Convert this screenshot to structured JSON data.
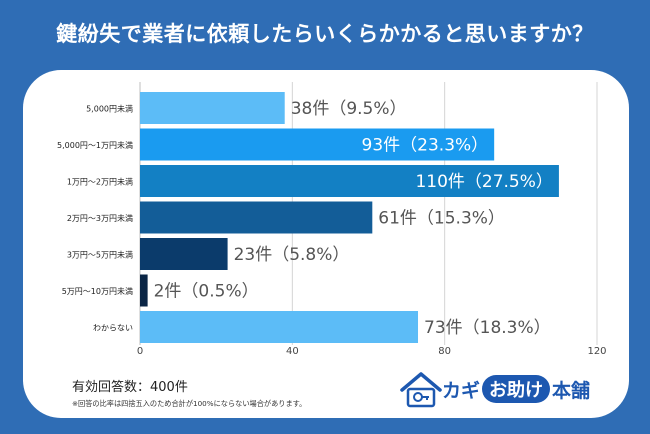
{
  "title": "鍵紛失で業者に依頼したらいくらかかると思いますか？",
  "chart_data": {
    "type": "bar",
    "orientation": "horizontal",
    "categories": [
      "5,000円未満",
      "5,000円～1万円未満",
      "1万円～2万円未満",
      "2万円～3万円未満",
      "3万円～5万円未満",
      "5万円～10万円未満",
      "わからない"
    ],
    "values": [
      38,
      93,
      110,
      61,
      23,
      2,
      73
    ],
    "data_labels": [
      "38件（9.5%）",
      "93件（23.3%）",
      "110件（27.5%）",
      "61件（15.3%）",
      "23件（5.8%）",
      "2件（0.5%）",
      "73件（18.3%）"
    ],
    "label_inside": [
      false,
      true,
      true,
      false,
      false,
      false,
      false
    ],
    "bar_colors": [
      "#5cbcf7",
      "#1a9bf0",
      "#1380c4",
      "#135d98",
      "#0b3b6b",
      "#0a2545",
      "#5cbcf7"
    ],
    "xlim": [
      0,
      120
    ],
    "xticks": [
      "0",
      "40",
      "80",
      "120"
    ],
    "grid": true
  },
  "footer": {
    "respondents": "有効回答数：400件",
    "note": "※回答の比率は四捨五入のため合計が100%にならない場合があります。"
  },
  "logo": {
    "kagi": "カギ",
    "otasuke": "お助け",
    "honpo": "本舗"
  }
}
